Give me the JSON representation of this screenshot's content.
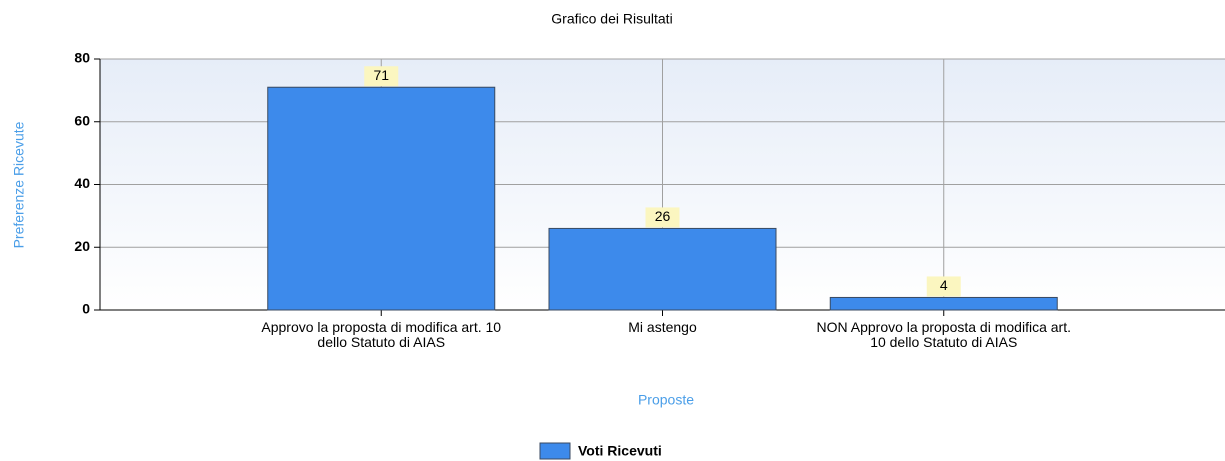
{
  "chart_data": {
    "type": "bar",
    "title": "Grafico dei Risultati",
    "x_label": "Proposte",
    "y_label": "Preferenze Ricevute",
    "categories": [
      "Approvo la proposta di modifica art. 10 dello Statuto di AIAS",
      "Mi astengo",
      "NON Approvo la proposta di modifica art. 10 dello Statuto di AIAS"
    ],
    "series": [
      {
        "name": "Voti Ricevuti",
        "color": "#3d8aeb",
        "values": [
          71,
          26,
          4
        ]
      }
    ],
    "ylim": [
      0,
      80
    ],
    "yticks": [
      0,
      20,
      40,
      60,
      80
    ],
    "grid": true,
    "legend": "bottom"
  }
}
